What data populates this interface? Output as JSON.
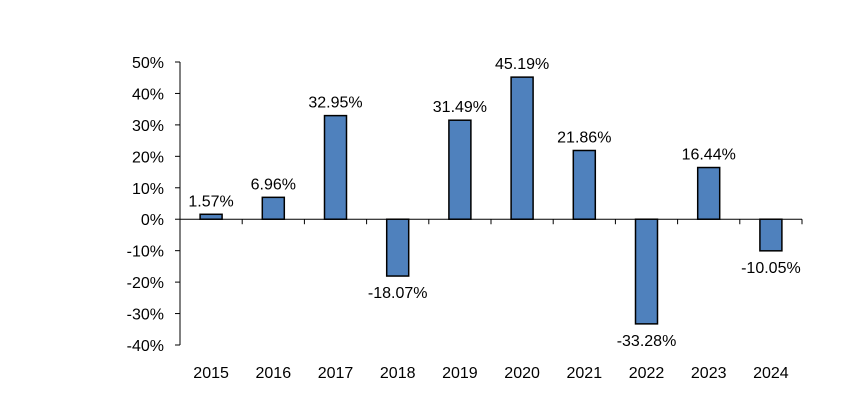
{
  "chart_data": {
    "type": "bar",
    "title": "",
    "xlabel": "",
    "ylabel": "",
    "categories": [
      "2015",
      "2016",
      "2017",
      "2018",
      "2019",
      "2020",
      "2021",
      "2022",
      "2023",
      "2024"
    ],
    "values": [
      1.57,
      6.96,
      32.95,
      -18.07,
      31.49,
      45.19,
      21.86,
      -33.28,
      16.44,
      -10.05
    ],
    "data_labels": [
      "1.57%",
      "6.96%",
      "32.95%",
      "-18.07%",
      "31.49%",
      "45.19%",
      "21.86%",
      "-33.28%",
      "16.44%",
      "-10.05%"
    ],
    "ylim": [
      -40,
      50
    ],
    "yticks": [
      50,
      40,
      30,
      20,
      10,
      0,
      -10,
      -20,
      -30,
      -40
    ],
    "ytick_labels": [
      "50%",
      "40%",
      "30%",
      "20%",
      "10%",
      "0%",
      "-10%",
      "-20%",
      "-30%",
      "-40%"
    ],
    "grid": false,
    "legend": "none",
    "colors": {
      "bar_fill": "#4f81bd",
      "bar_stroke": "#000000",
      "axis": "#000000"
    }
  }
}
